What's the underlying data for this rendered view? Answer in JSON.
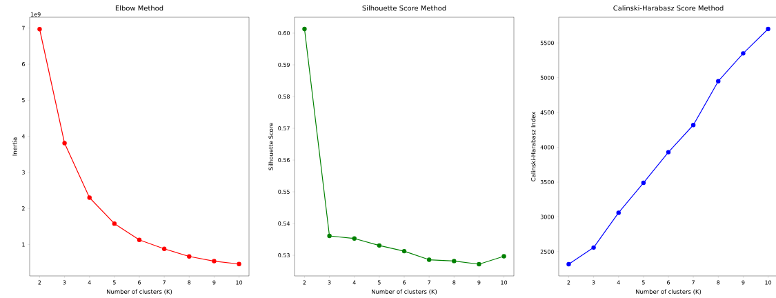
{
  "chart_data": [
    {
      "type": "line",
      "title": "Elbow Method",
      "xlabel": "Number of clusters (K)",
      "ylabel": "Inertia",
      "annotations": [
        "1e9"
      ],
      "x": [
        2,
        3,
        4,
        5,
        6,
        7,
        8,
        9,
        10
      ],
      "xlim": [
        1.6,
        10.4
      ],
      "xticks": [
        2,
        3,
        4,
        5,
        6,
        7,
        8,
        9,
        10
      ],
      "ylim": [
        0.13,
        7.3
      ],
      "yticks": [
        1,
        2,
        3,
        4,
        5,
        6,
        7
      ],
      "series": [
        {
          "color": "#ff0000",
          "values": [
            6.97,
            3.81,
            2.3,
            1.58,
            1.13,
            0.88,
            0.67,
            0.54,
            0.46
          ]
        }
      ],
      "marker": "circle",
      "line_style": "solid",
      "grid": false
    },
    {
      "type": "line",
      "title": "Silhouette Score Method",
      "xlabel": "Number of clusters (K)",
      "ylabel": "Silhouette Score",
      "x": [
        2,
        3,
        4,
        5,
        6,
        7,
        8,
        9,
        10
      ],
      "xlim": [
        1.6,
        10.4
      ],
      "xticks": [
        2,
        3,
        4,
        5,
        6,
        7,
        8,
        9,
        10
      ],
      "ylim": [
        0.5235,
        0.605
      ],
      "yticks": [
        {
          "value": 0.53,
          "label": "0.53"
        },
        {
          "value": 0.54,
          "label": "0.54"
        },
        {
          "value": 0.55,
          "label": "0.55"
        },
        {
          "value": 0.56,
          "label": "0.56"
        },
        {
          "value": 0.57,
          "label": "0.57"
        },
        {
          "value": 0.58,
          "label": "0.58"
        },
        {
          "value": 0.59,
          "label": "0.59"
        },
        {
          "value": 0.6,
          "label": "0.60"
        }
      ],
      "series": [
        {
          "color": "#008000",
          "values": [
            0.6013,
            0.5361,
            0.5353,
            0.5331,
            0.5313,
            0.5286,
            0.5282,
            0.5272,
            0.5297
          ]
        }
      ],
      "marker": "circle",
      "line_style": "solid",
      "grid": false
    },
    {
      "type": "line",
      "title": "Calinski-Harabasz Score Method",
      "xlabel": "Number of clusters (K)",
      "ylabel": "Calinski-Harabasz Index",
      "x": [
        2,
        3,
        4,
        5,
        6,
        7,
        8,
        9,
        10
      ],
      "xlim": [
        1.6,
        10.4
      ],
      "xticks": [
        2,
        3,
        4,
        5,
        6,
        7,
        8,
        9,
        10
      ],
      "ylim": [
        2152,
        5869
      ],
      "yticks": [
        2500,
        3000,
        3500,
        4000,
        4500,
        5000,
        5500
      ],
      "series": [
        {
          "color": "#0000ff",
          "values": [
            2320,
            2560,
            3060,
            3490,
            3930,
            4320,
            4950,
            5350,
            5700
          ]
        }
      ],
      "marker": "circle",
      "line_style": "solid",
      "grid": false
    }
  ]
}
